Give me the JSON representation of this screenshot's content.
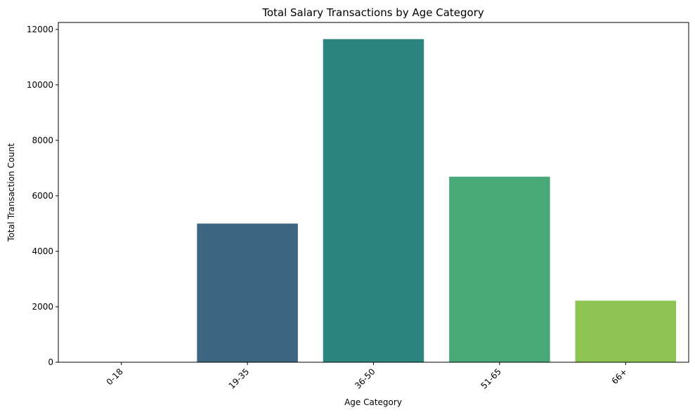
{
  "chart_data": {
    "type": "bar",
    "title": "Total Salary Transactions by Age Category",
    "xlabel": "Age Category",
    "ylabel": "Total Transaction Count",
    "categories": [
      "0-18",
      "19-35",
      "36-50",
      "51-65",
      "66+"
    ],
    "values": [
      0,
      5000,
      11650,
      6690,
      2220
    ],
    "colors": [
      "#440154",
      "#3e6582",
      "#2e8480",
      "#48a878",
      "#8dc453"
    ],
    "ylim": [
      0,
      12250
    ],
    "yticks": [
      0,
      2000,
      4000,
      6000,
      8000,
      10000,
      12000
    ],
    "ytick_labels": [
      "0",
      "2000",
      "4000",
      "6000",
      "8000",
      "10000",
      "12000"
    ],
    "grid": false,
    "xtick_rotation_deg": 45
  }
}
